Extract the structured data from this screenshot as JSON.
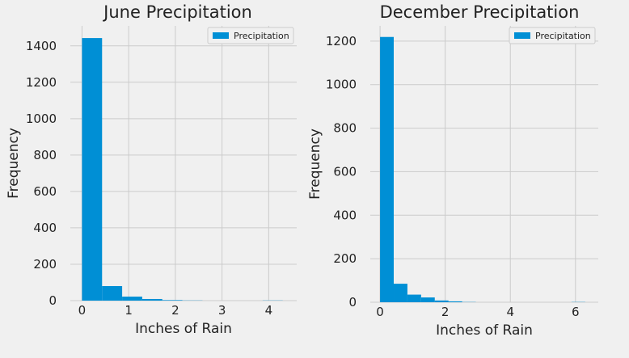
{
  "chart_data": [
    {
      "type": "bar",
      "title": "June Precipitation",
      "xlabel": "Inches of Rain",
      "ylabel": "Frequency",
      "legend": {
        "label": "Precipitation",
        "placement": "top-right"
      },
      "color": "#008fd5",
      "grid": true,
      "xlim": [
        -0.25,
        4.6
      ],
      "ylim": [
        0,
        1510
      ],
      "xticks": [
        0,
        1,
        2,
        3,
        4
      ],
      "yticks": [
        0,
        200,
        400,
        600,
        800,
        1000,
        1200,
        1400
      ],
      "bin_edges": [
        0,
        0.43,
        0.86,
        1.29,
        1.72,
        2.15,
        2.58,
        3.01,
        3.44,
        3.87,
        4.3
      ],
      "values": [
        1443,
        80,
        22,
        9,
        3,
        1,
        0,
        0,
        0,
        1
      ]
    },
    {
      "type": "bar",
      "title": "December Precipitation",
      "xlabel": "Inches of Rain",
      "ylabel": "Frequency",
      "legend": {
        "label": "Precipitation",
        "placement": "top-right"
      },
      "color": "#008fd5",
      "grid": true,
      "xlim": [
        -0.3,
        6.7
      ],
      "ylim": [
        0,
        1270
      ],
      "xticks": [
        0,
        2,
        4,
        6
      ],
      "yticks": [
        0,
        200,
        400,
        600,
        800,
        1000,
        1200
      ],
      "bin_edges": [
        0,
        0.42,
        0.84,
        1.26,
        1.68,
        2.1,
        2.52,
        2.94,
        3.36,
        3.78,
        4.2,
        4.62,
        5.04,
        5.46,
        5.88,
        6.3
      ],
      "values": [
        1219,
        85,
        35,
        22,
        8,
        4,
        1,
        0,
        0,
        0,
        0,
        0,
        0,
        0,
        1
      ]
    }
  ]
}
